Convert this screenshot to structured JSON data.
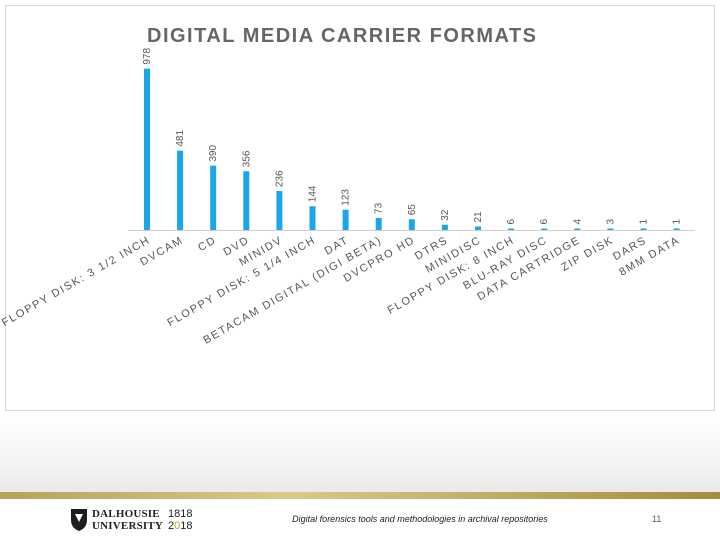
{
  "chart_data": {
    "type": "bar",
    "title": "DIGITAL MEDIA CARRIER FORMATS",
    "categories": [
      "FLOPPY DISK: 3 1/2 INCH",
      "DVCAM",
      "CD",
      "DVD",
      "MINIDV",
      "FLOPPY DISK: 5 1/4 INCH",
      "DAT",
      "BETACAM DIGITAL (DIGI BETA)",
      "DVCPRO HD",
      "DTRS",
      "MINIDISC",
      "FLOPPY DISK: 8 INCH",
      "BLU-RAY DISC",
      "DATA CARTRIDGE",
      "ZIP DISK",
      "DARS",
      "8MM DATA"
    ],
    "values": [
      978,
      481,
      390,
      356,
      236,
      144,
      123,
      73,
      65,
      32,
      21,
      6,
      6,
      4,
      3,
      1,
      1
    ],
    "xlabel": "",
    "ylabel": "",
    "ylim": [
      0,
      1000
    ],
    "color": "#1aa7e6"
  },
  "footer": {
    "university_line1": "DALHOUSIE",
    "university_line2": "UNIVERSITY",
    "year1": "1818",
    "year2_part1": "2",
    "year2_part2": "0",
    "year2_part3": "18",
    "caption": "Digital forensics tools and methodologies in archival repositories",
    "page_number": "11"
  }
}
